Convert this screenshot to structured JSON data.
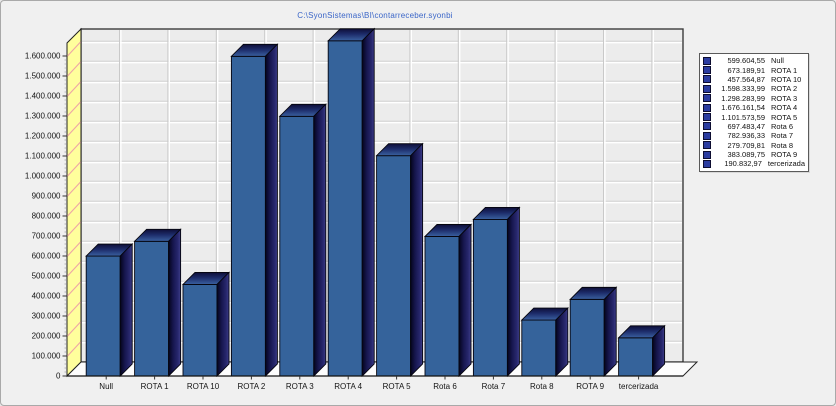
{
  "title": {
    "text": "C:\\SyonSistemas\\BI\\contarreceber.syonbi"
  },
  "colors": {
    "title": "#3b66c8",
    "page_bg": "#f0f0f0",
    "plot_bg": "#ececec",
    "wall": "#ffff9c",
    "wall_line": "#eda6a6",
    "floor": "#fdfdfd",
    "bar_face": "#35639b",
    "bar_side_dark": "#04041c",
    "bar_side_mid": "#16164e",
    "bar_side_light": "#3e3e8a",
    "bar_top_dark": "#0e0e38",
    "bar_top_mid": "#1d2c6a",
    "bar_top_light": "#3a61a0",
    "legend_marker": "#2c3da0",
    "grid_white": "#ffffff",
    "grid_gray": "#c9c9c9",
    "axis_text": "#141414"
  },
  "chart_data": {
    "type": "bar",
    "style": "3d",
    "title": "C:\\SyonSistemas\\BI\\contarreceber.syonbi",
    "categories": [
      "Null",
      "ROTA 1",
      "ROTA 10",
      "ROTA 2",
      "ROTA 3",
      "ROTA 4",
      "ROTA 5",
      "Rota 6",
      "Rota 7",
      "Rota 8",
      "ROTA 9",
      "tercerizada"
    ],
    "values": [
      599604.55,
      673189.91,
      457564.87,
      1598333.99,
      1298283.99,
      1676161.54,
      1101573.59,
      697483.47,
      782936.33,
      279709.81,
      383089.75,
      190832.97
    ],
    "value_labels": [
      "599.604,55",
      "673.189,91",
      "457.564,87",
      "1.598.333,99",
      "1.298.283,99",
      "1.676.161,54",
      "1.101.573,59",
      "697.483,47",
      "782.936,33",
      "279.709,81",
      "383.089,75",
      "190.832,97"
    ],
    "xlabel": "",
    "ylabel": "",
    "ylim": [
      0,
      1600000
    ],
    "ytick_interval": 100000,
    "ytick_labels": [
      "0",
      "100.000",
      "200.000",
      "300.000",
      "400.000",
      "500.000",
      "600.000",
      "700.000",
      "800.000",
      "900.000",
      "1.000.000",
      "1.100.000",
      "1.200.000",
      "1.300.000",
      "1.400.000",
      "1.500.000",
      "1.600.000"
    ],
    "grid": true,
    "legend_position": "right"
  },
  "legend": {
    "entries": [
      {
        "value": "599.604,55",
        "label": "Null"
      },
      {
        "value": "673.189,91",
        "label": "ROTA 1"
      },
      {
        "value": "457.564,87",
        "label": "ROTA 10"
      },
      {
        "value": "1.598.333,99",
        "label": "ROTA 2"
      },
      {
        "value": "1.298.283,99",
        "label": "ROTA 3"
      },
      {
        "value": "1.676.161,54",
        "label": "ROTA 4"
      },
      {
        "value": "1.101.573,59",
        "label": "ROTA 5"
      },
      {
        "value": "697.483,47",
        "label": "Rota 6"
      },
      {
        "value": "782.936,33",
        "label": "Rota 7"
      },
      {
        "value": "279.709,81",
        "label": "Rota 8"
      },
      {
        "value": "383.089,75",
        "label": "ROTA 9"
      },
      {
        "value": "190.832,97",
        "label": "tercerizada"
      }
    ]
  }
}
